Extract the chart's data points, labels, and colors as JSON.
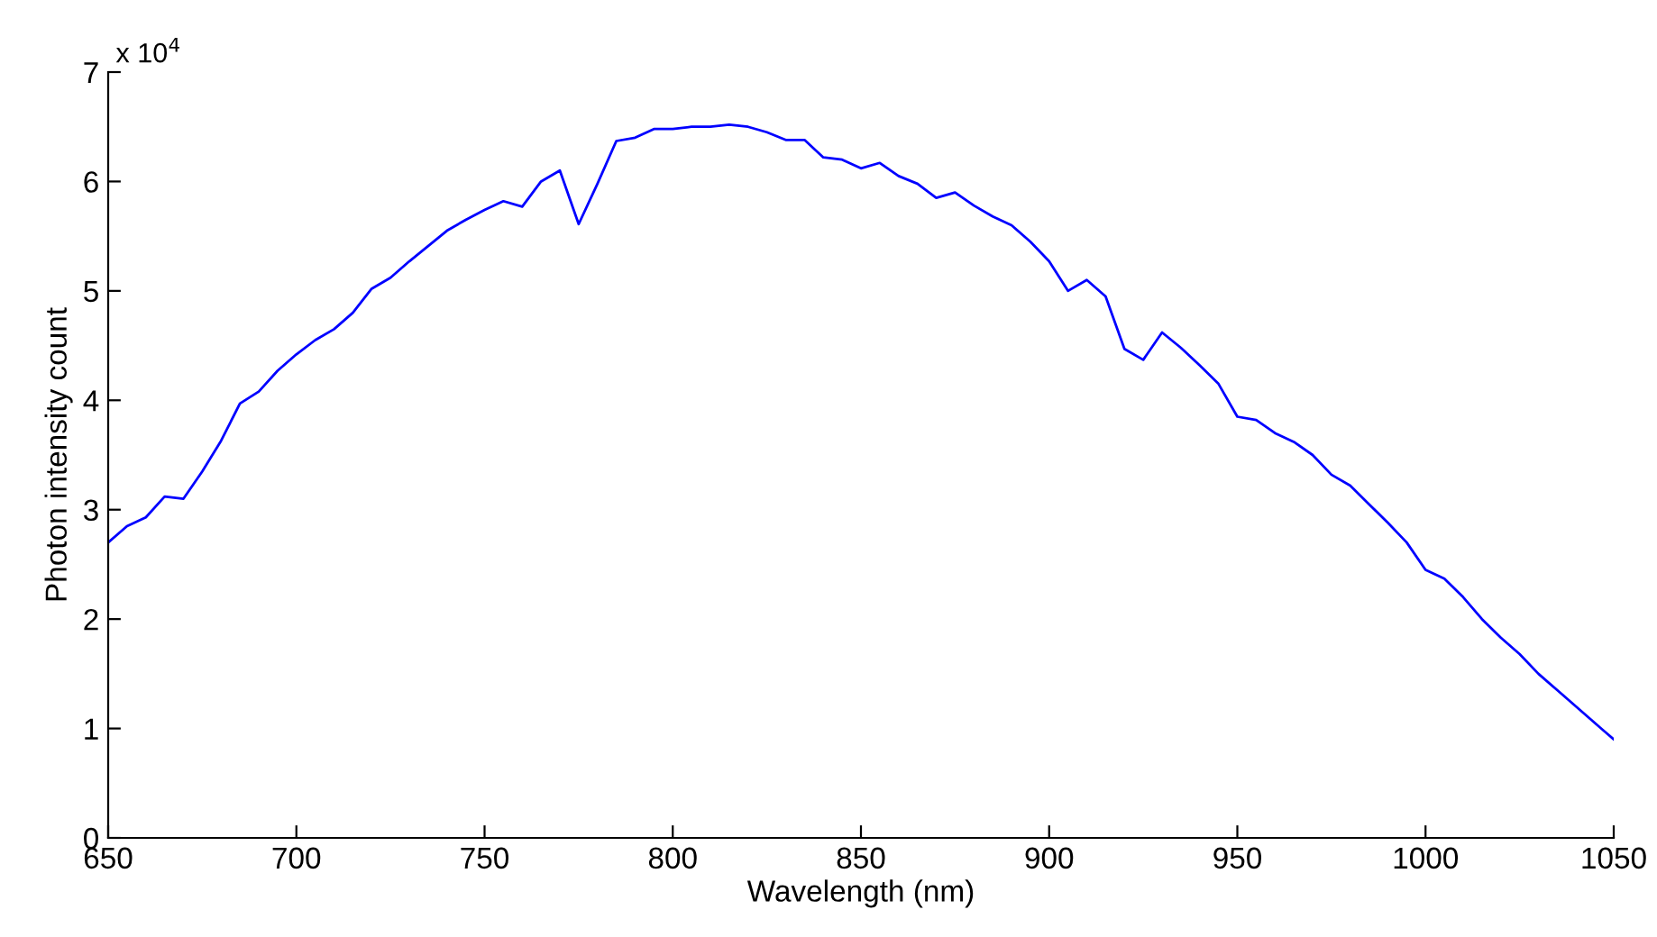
{
  "chart_data": {
    "type": "line",
    "xlabel": "Wavelength (nm)",
    "ylabel": "Photon intensity count",
    "annotations": [
      "x 10$^{4}$"
    ],
    "x": [
      650,
      655,
      660,
      665,
      670,
      675,
      680,
      685,
      690,
      695,
      700,
      705,
      710,
      715,
      720,
      725,
      730,
      735,
      740,
      745,
      750,
      755,
      760,
      765,
      770,
      775,
      780,
      785,
      790,
      795,
      800,
      805,
      810,
      815,
      820,
      825,
      830,
      835,
      840,
      845,
      850,
      855,
      860,
      865,
      870,
      875,
      880,
      885,
      890,
      895,
      900,
      905,
      910,
      915,
      920,
      925,
      930,
      935,
      940,
      945,
      950,
      955,
      960,
      965,
      970,
      975,
      980,
      985,
      990,
      995,
      1000,
      1005,
      1010,
      1015,
      1020,
      1025,
      1030,
      1035,
      1040,
      1045,
      1050
    ],
    "series": [
      {
        "color": "#0000ff",
        "values": [
          2.7,
          2.85,
          2.93,
          3.12,
          3.1,
          3.35,
          3.63,
          3.97,
          4.08,
          4.27,
          4.42,
          4.55,
          4.65,
          4.8,
          5.02,
          5.12,
          5.27,
          5.41,
          5.55,
          5.65,
          5.74,
          5.82,
          5.77,
          6.0,
          6.1,
          5.61,
          5.98,
          6.37,
          6.4,
          6.48,
          6.48,
          6.5,
          6.5,
          6.52,
          6.5,
          6.45,
          6.38,
          6.38,
          6.22,
          6.2,
          6.12,
          6.17,
          6.05,
          5.98,
          5.85,
          5.9,
          5.78,
          5.68,
          5.6,
          5.45,
          5.27,
          5.0,
          5.1,
          4.95,
          4.47,
          4.37,
          4.62,
          4.48,
          4.32,
          4.15,
          3.85,
          3.82,
          3.7,
          3.62,
          3.5,
          3.32,
          3.22,
          3.05,
          2.88,
          2.7,
          2.45,
          2.37,
          2.2,
          2.0,
          1.83,
          1.68,
          1.5,
          1.35,
          1.2,
          1.05,
          0.9
        ]
      }
    ],
    "xlim": [
      650,
      1050
    ],
    "xticks": [
      650,
      700,
      750,
      800,
      850,
      900,
      950,
      1000,
      1050
    ],
    "ylim": [
      0,
      7
    ],
    "yticks": [
      0,
      1,
      2,
      3,
      4,
      5,
      6,
      7
    ],
    "grid": false,
    "legend": false,
    "marker": "none",
    "line_style": "solid"
  }
}
